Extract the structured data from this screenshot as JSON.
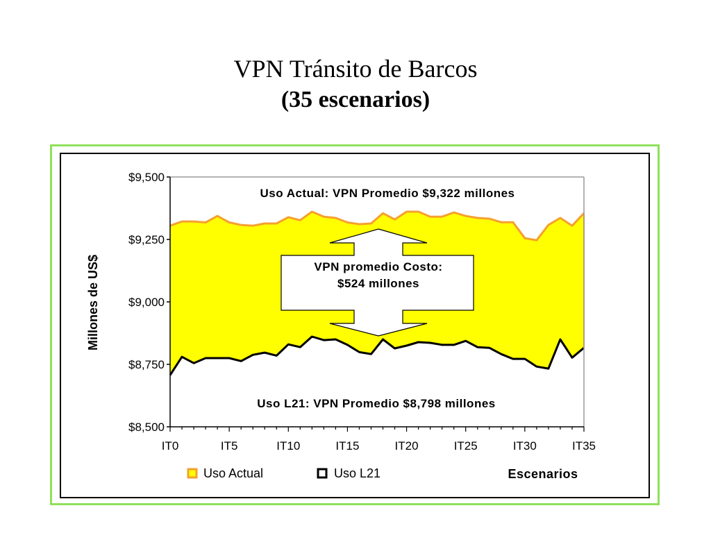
{
  "slide": {
    "title": "VPN Tránsito de Barcos",
    "subtitle": "(35 escenarios)"
  },
  "chart_data": {
    "type": "area",
    "ylabel": "Millones de US$",
    "xlabel": "Escenarios",
    "ylim": [
      8500,
      9500
    ],
    "yticks": [
      8500,
      8750,
      9000,
      9250,
      9500
    ],
    "ytick_labels": [
      "$8,500",
      "$8,750",
      "$9,000",
      "$9,250",
      "$9,500"
    ],
    "xtick_labels": [
      "IT0",
      "IT5",
      "IT10",
      "IT15",
      "IT20",
      "IT25",
      "IT30",
      "IT35"
    ],
    "xtick_index": [
      0,
      5,
      10,
      15,
      20,
      25,
      30,
      35
    ],
    "series": [
      {
        "name": "Uso Actual",
        "color": "#ffff00",
        "line_color": "#f5a030",
        "values": [
          9305,
          9322,
          9322,
          9318,
          9344,
          9318,
          9308,
          9305,
          9314,
          9314,
          9339,
          9327,
          9361,
          9341,
          9336,
          9318,
          9311,
          9314,
          9355,
          9330,
          9361,
          9361,
          9341,
          9341,
          9358,
          9344,
          9336,
          9333,
          9319,
          9319,
          9255,
          9247,
          9308,
          9336,
          9305,
          9355
        ]
      },
      {
        "name": "Uso L21",
        "color": "#ffffff",
        "line_color": "#000000",
        "values": [
          8707,
          8780,
          8755,
          8775,
          8775,
          8775,
          8763,
          8788,
          8797,
          8785,
          8830,
          8819,
          8861,
          8847,
          8850,
          8828,
          8799,
          8791,
          8850,
          8814,
          8825,
          8839,
          8836,
          8828,
          8828,
          8844,
          8819,
          8816,
          8791,
          8772,
          8772,
          8741,
          8733,
          8850,
          8777,
          8816
        ]
      }
    ],
    "annotations": {
      "top": "Uso Actual: VPN Promedio $9,322 millones",
      "middle_line1": "VPN promedio Costo:",
      "middle_line2": "$524 millones",
      "bottom": "Uso L21: VPN Promedio $8,798 millones"
    },
    "legend_placement": "bottom-left",
    "grid": false
  }
}
